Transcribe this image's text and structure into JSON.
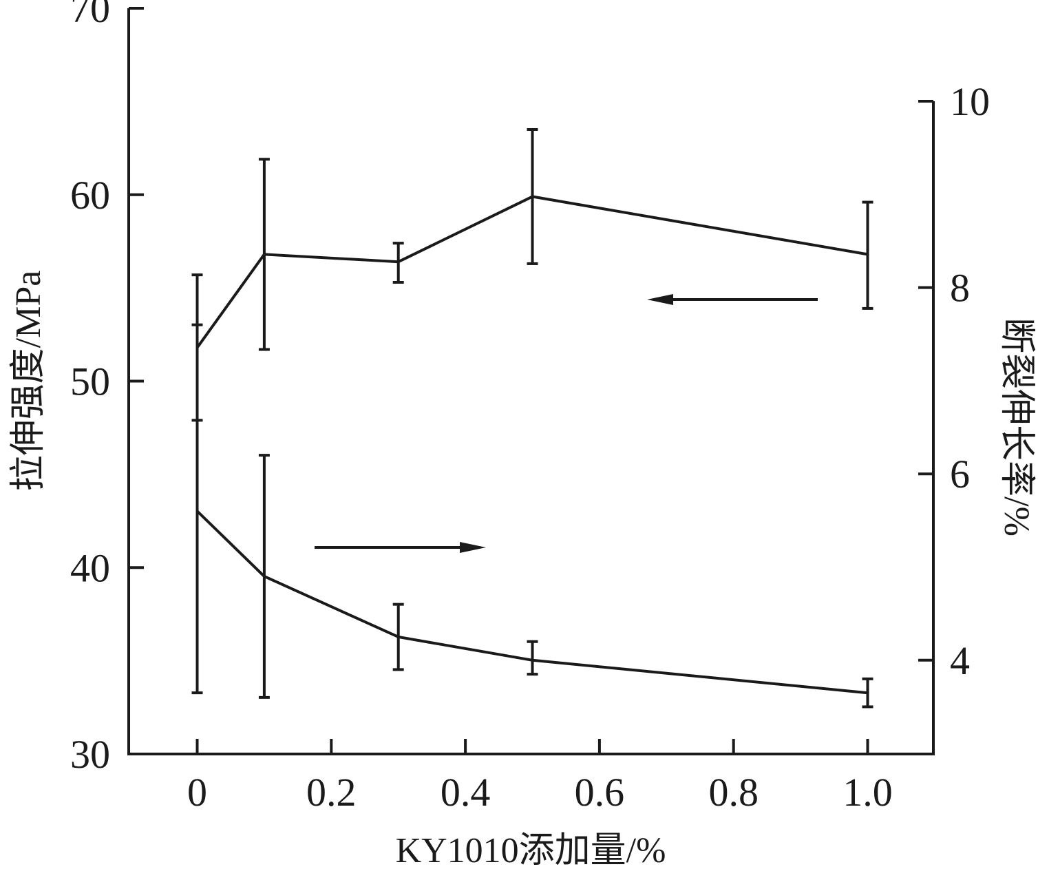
{
  "chart_data": {
    "type": "line",
    "xlabel": "KY1010添加量/%",
    "ylabel_left": "拉伸强度/MPa",
    "ylabel_right": "断裂伸长率/%",
    "xlim": [
      -0.2,
      1.4
    ],
    "ylim_left": [
      30,
      70
    ],
    "ylim_right": [
      3,
      10
    ],
    "x_ticks": [
      0,
      0.2,
      0.4,
      0.6,
      0.8,
      1.0
    ],
    "x_tick_labels": [
      "0",
      "0.2",
      "0.4",
      "0.6",
      "0.8",
      "1.0"
    ],
    "y_left_ticks": [
      30,
      40,
      50,
      60,
      70
    ],
    "y_left_tick_labels": [
      "30",
      "40",
      "50",
      "60",
      "70"
    ],
    "y_right_ticks": [
      4,
      6,
      8,
      10
    ],
    "y_right_tick_labels": [
      "4",
      "6",
      "8",
      "10"
    ],
    "grid": false,
    "legend": "none",
    "series": [
      {
        "axis": "left",
        "x": [
          0,
          0.1,
          0.3,
          0.5,
          1.0
        ],
        "y": [
          51.8,
          56.8,
          56.4,
          59.9,
          56.8
        ],
        "err_low": [
          47.9,
          51.7,
          55.3,
          56.3,
          53.9
        ],
        "err_high": [
          55.7,
          61.9,
          57.4,
          63.5,
          59.6
        ],
        "arrow_direction": "left"
      },
      {
        "axis": "right",
        "x": [
          0,
          0.1,
          0.3,
          0.5,
          1.0
        ],
        "y": [
          5.6,
          4.9,
          4.25,
          4.0,
          3.65
        ],
        "err_low": [
          3.65,
          3.6,
          3.9,
          3.85,
          3.5
        ],
        "err_high": [
          7.6,
          6.2,
          4.6,
          4.2,
          3.8
        ],
        "arrow_direction": "right"
      }
    ]
  }
}
